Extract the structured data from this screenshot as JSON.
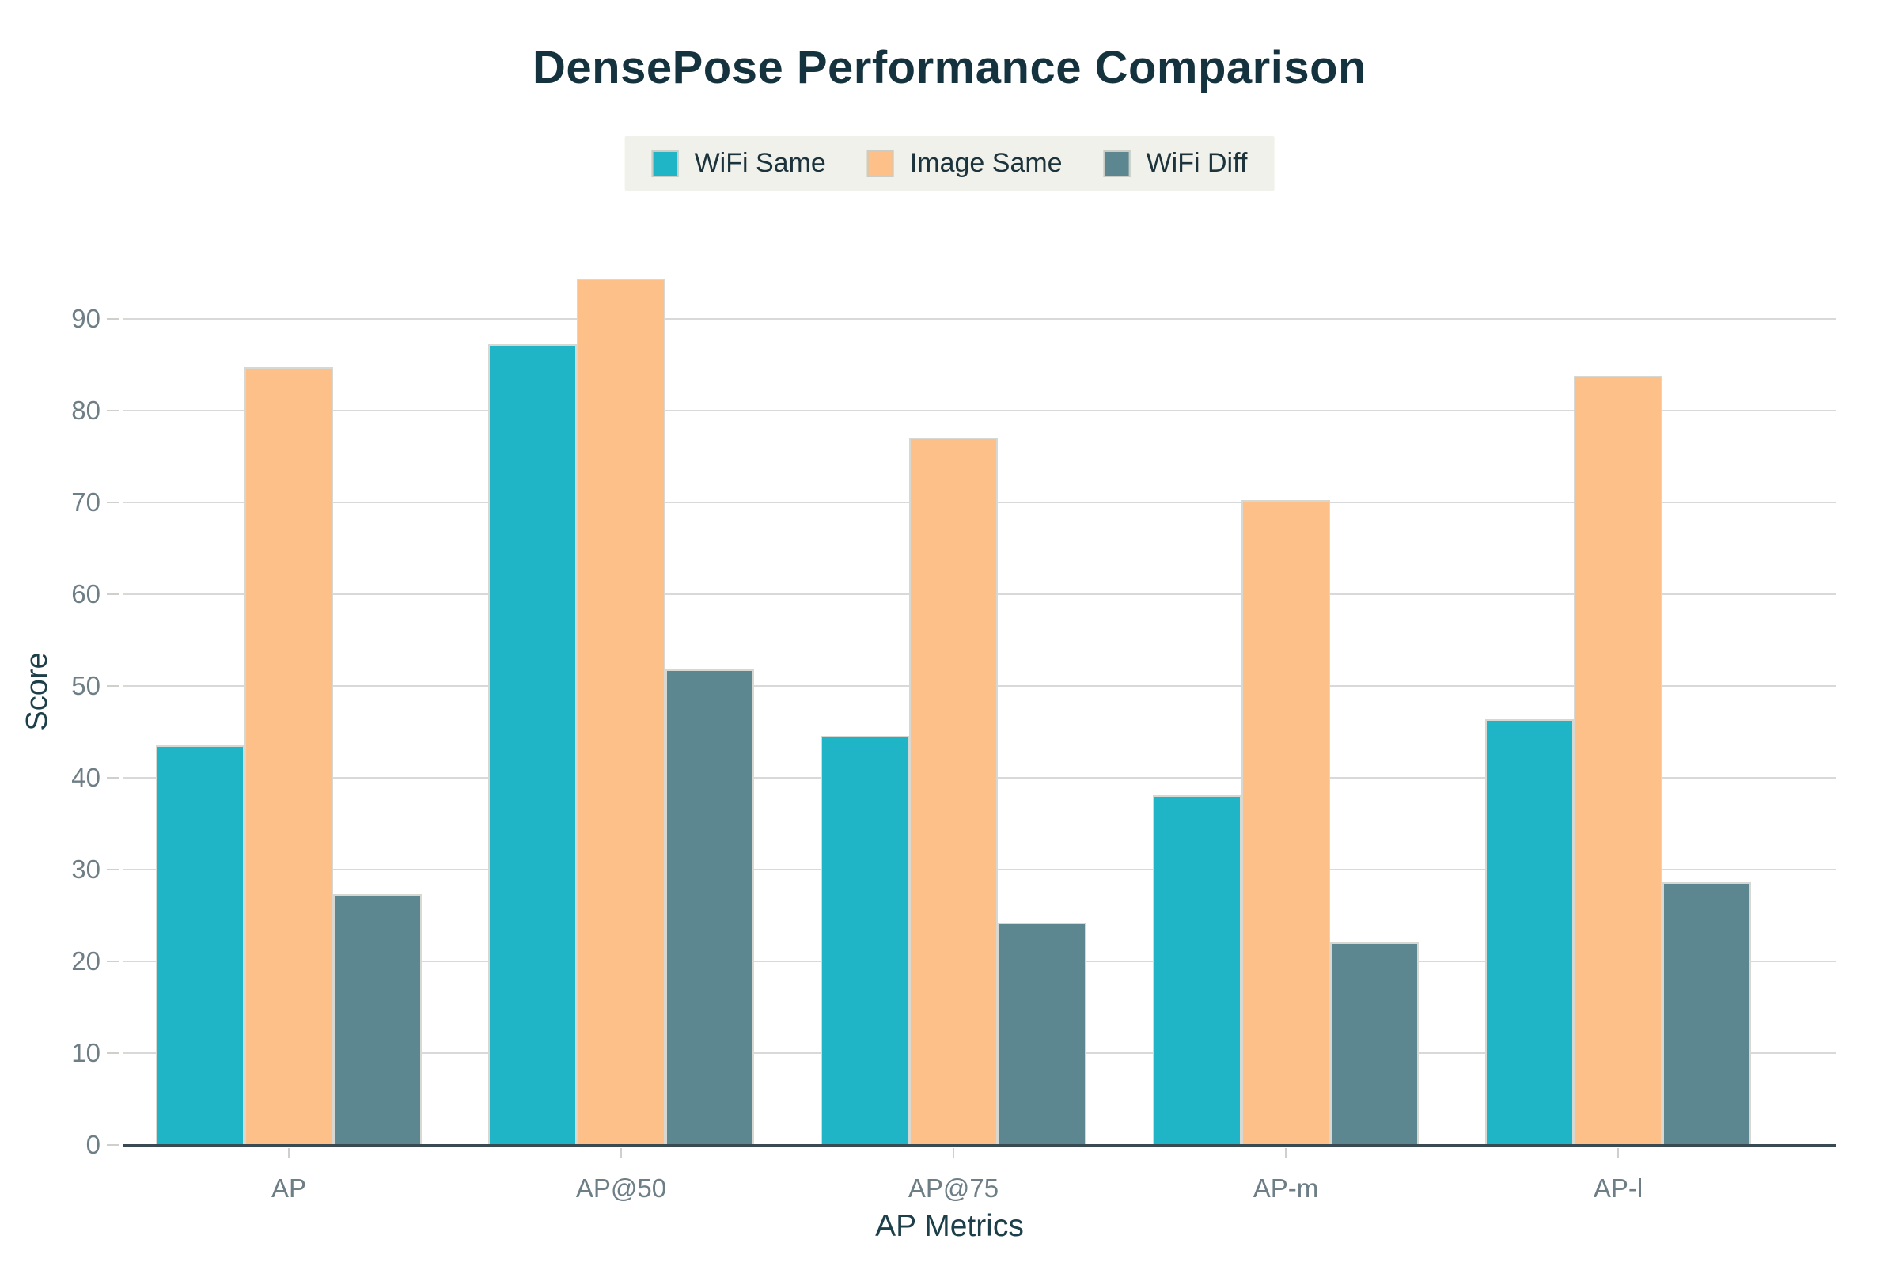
{
  "chart_data": {
    "type": "bar",
    "title": "DensePose Performance Comparison",
    "xlabel": "AP Metrics",
    "ylabel": "Score",
    "categories": [
      "AP",
      "AP@50",
      "AP@75",
      "AP-m",
      "AP-l"
    ],
    "series": [
      {
        "name": "WiFi Same",
        "color": "#20b4c7",
        "values": [
          43.5,
          87.2,
          44.6,
          38.1,
          46.4
        ]
      },
      {
        "name": "Image Same",
        "color": "#fdc088",
        "values": [
          84.7,
          94.4,
          77.1,
          70.3,
          83.8
        ]
      },
      {
        "name": "WiFi Diff",
        "color": "#5d8790",
        "values": [
          27.3,
          51.8,
          24.2,
          22.1,
          28.6
        ]
      }
    ],
    "ylim": [
      0,
      95
    ],
    "yticks": [
      0,
      10,
      20,
      30,
      40,
      50,
      60,
      70,
      80,
      90
    ],
    "grid": true,
    "legend_position": "top-center"
  },
  "style": {
    "title_color": "#15333e",
    "axis_title_color": "#1d3f4a",
    "tick_color": "#6e7e86",
    "gridline_color": "#d9d9d9",
    "axis_line_color": "#3a4a52",
    "legend_bg": "#f0f1ea",
    "background": "#ffffff"
  }
}
